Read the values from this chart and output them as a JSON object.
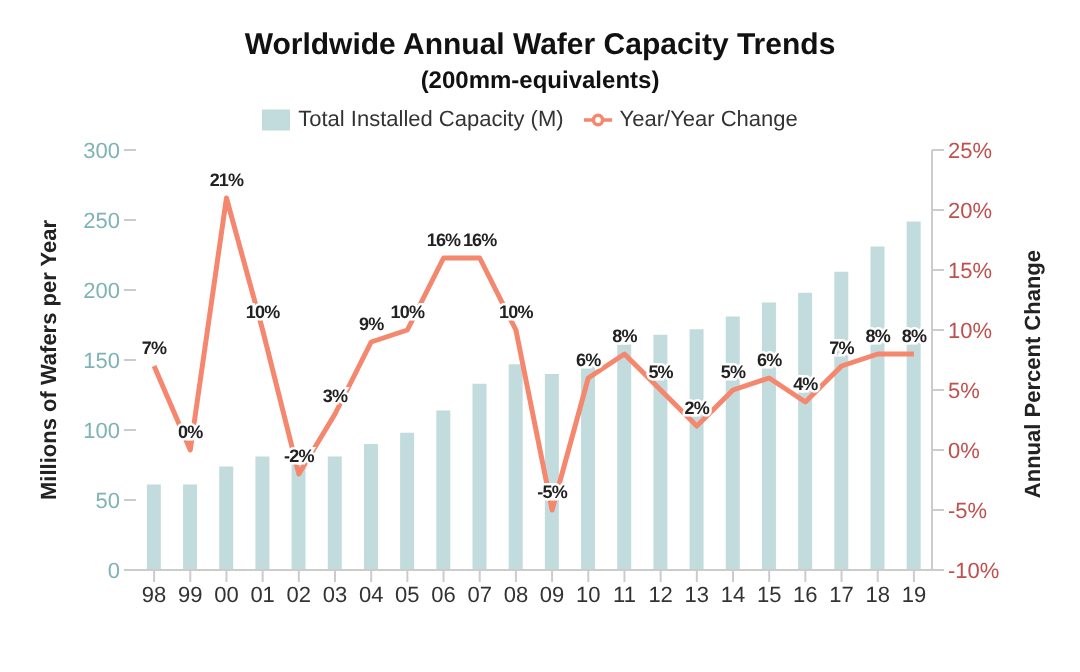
{
  "chart_data": {
    "type": "bar",
    "title": "Worldwide Annual Wafer Capacity Trends",
    "subtitle": "(200mm-equivalents)",
    "ylabel": "Millions of Wafers per Year",
    "y2label": "Annual Percent Change",
    "categories": [
      "98",
      "99",
      "00",
      "01",
      "02",
      "03",
      "04",
      "05",
      "06",
      "07",
      "08",
      "09",
      "10",
      "11",
      "12",
      "13",
      "14",
      "15",
      "16",
      "17",
      "18",
      "19"
    ],
    "series": [
      {
        "name": "Total Installed Capacity (M)",
        "color": "#c2dcdd",
        "values": [
          61,
          61,
          74,
          81,
          80,
          81,
          90,
          98,
          114,
          133,
          147,
          140,
          149,
          161,
          168,
          172,
          181,
          191,
          198,
          213,
          231,
          249
        ]
      },
      {
        "name": "Year/Year Change",
        "type": "line",
        "axis": "y2",
        "color": "#f4876e",
        "values": [
          7,
          0,
          21,
          10,
          -2,
          3,
          9,
          10,
          16,
          16,
          10,
          -5,
          6,
          8,
          5,
          2,
          5,
          6,
          4,
          7,
          8,
          8
        ],
        "value_labels": [
          "7%",
          "0%",
          "21%",
          "10%",
          "-2%",
          "3%",
          "9%",
          "10%",
          "16%",
          "16%",
          "10%",
          "-5%",
          "6%",
          "8%",
          "5%",
          "2%",
          "5%",
          "6%",
          "4%",
          "7%",
          "8%",
          "8%"
        ]
      }
    ],
    "ylim": [
      0,
      300
    ],
    "yticks": [
      0,
      50,
      100,
      150,
      200,
      250,
      300
    ],
    "y2lim": [
      -10,
      25
    ],
    "y2ticks": [
      {
        "value": -10,
        "label": "-10%"
      },
      {
        "value": -5,
        "label": "-5%"
      },
      {
        "value": 0,
        "label": "0%"
      },
      {
        "value": 5,
        "label": "5%"
      },
      {
        "value": 10,
        "label": "10%"
      },
      {
        "value": 15,
        "label": "15%"
      },
      {
        "value": 20,
        "label": "20%"
      },
      {
        "value": 25,
        "label": "25%"
      }
    ],
    "legend": "top",
    "grid": false,
    "marker": "none",
    "line_style": "solid"
  }
}
